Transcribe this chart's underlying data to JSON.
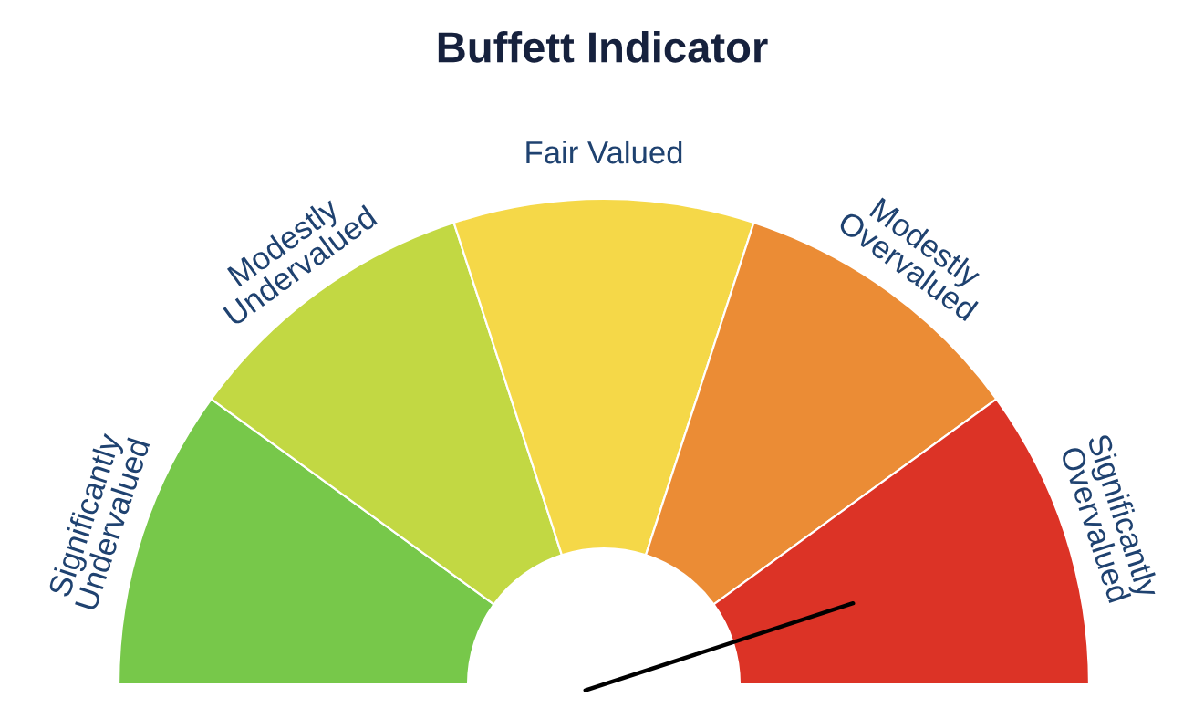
{
  "chart_data": {
    "type": "donut",
    "title": "Buffett Indicator",
    "categories": [
      "Significantly\nUndervalued",
      "Modestly\nUndervalued",
      "Fair Valued",
      "Modestly\nOvervalued",
      "Significantly\nOvervalued"
    ],
    "values": [
      20,
      20,
      20,
      20,
      20
    ],
    "colors": [
      "#77c84a",
      "#c2d843",
      "#f5d848",
      "#eb8c35",
      "#dc3326"
    ],
    "needle": "Significantly\nOvervalued",
    "legend": false
  }
}
